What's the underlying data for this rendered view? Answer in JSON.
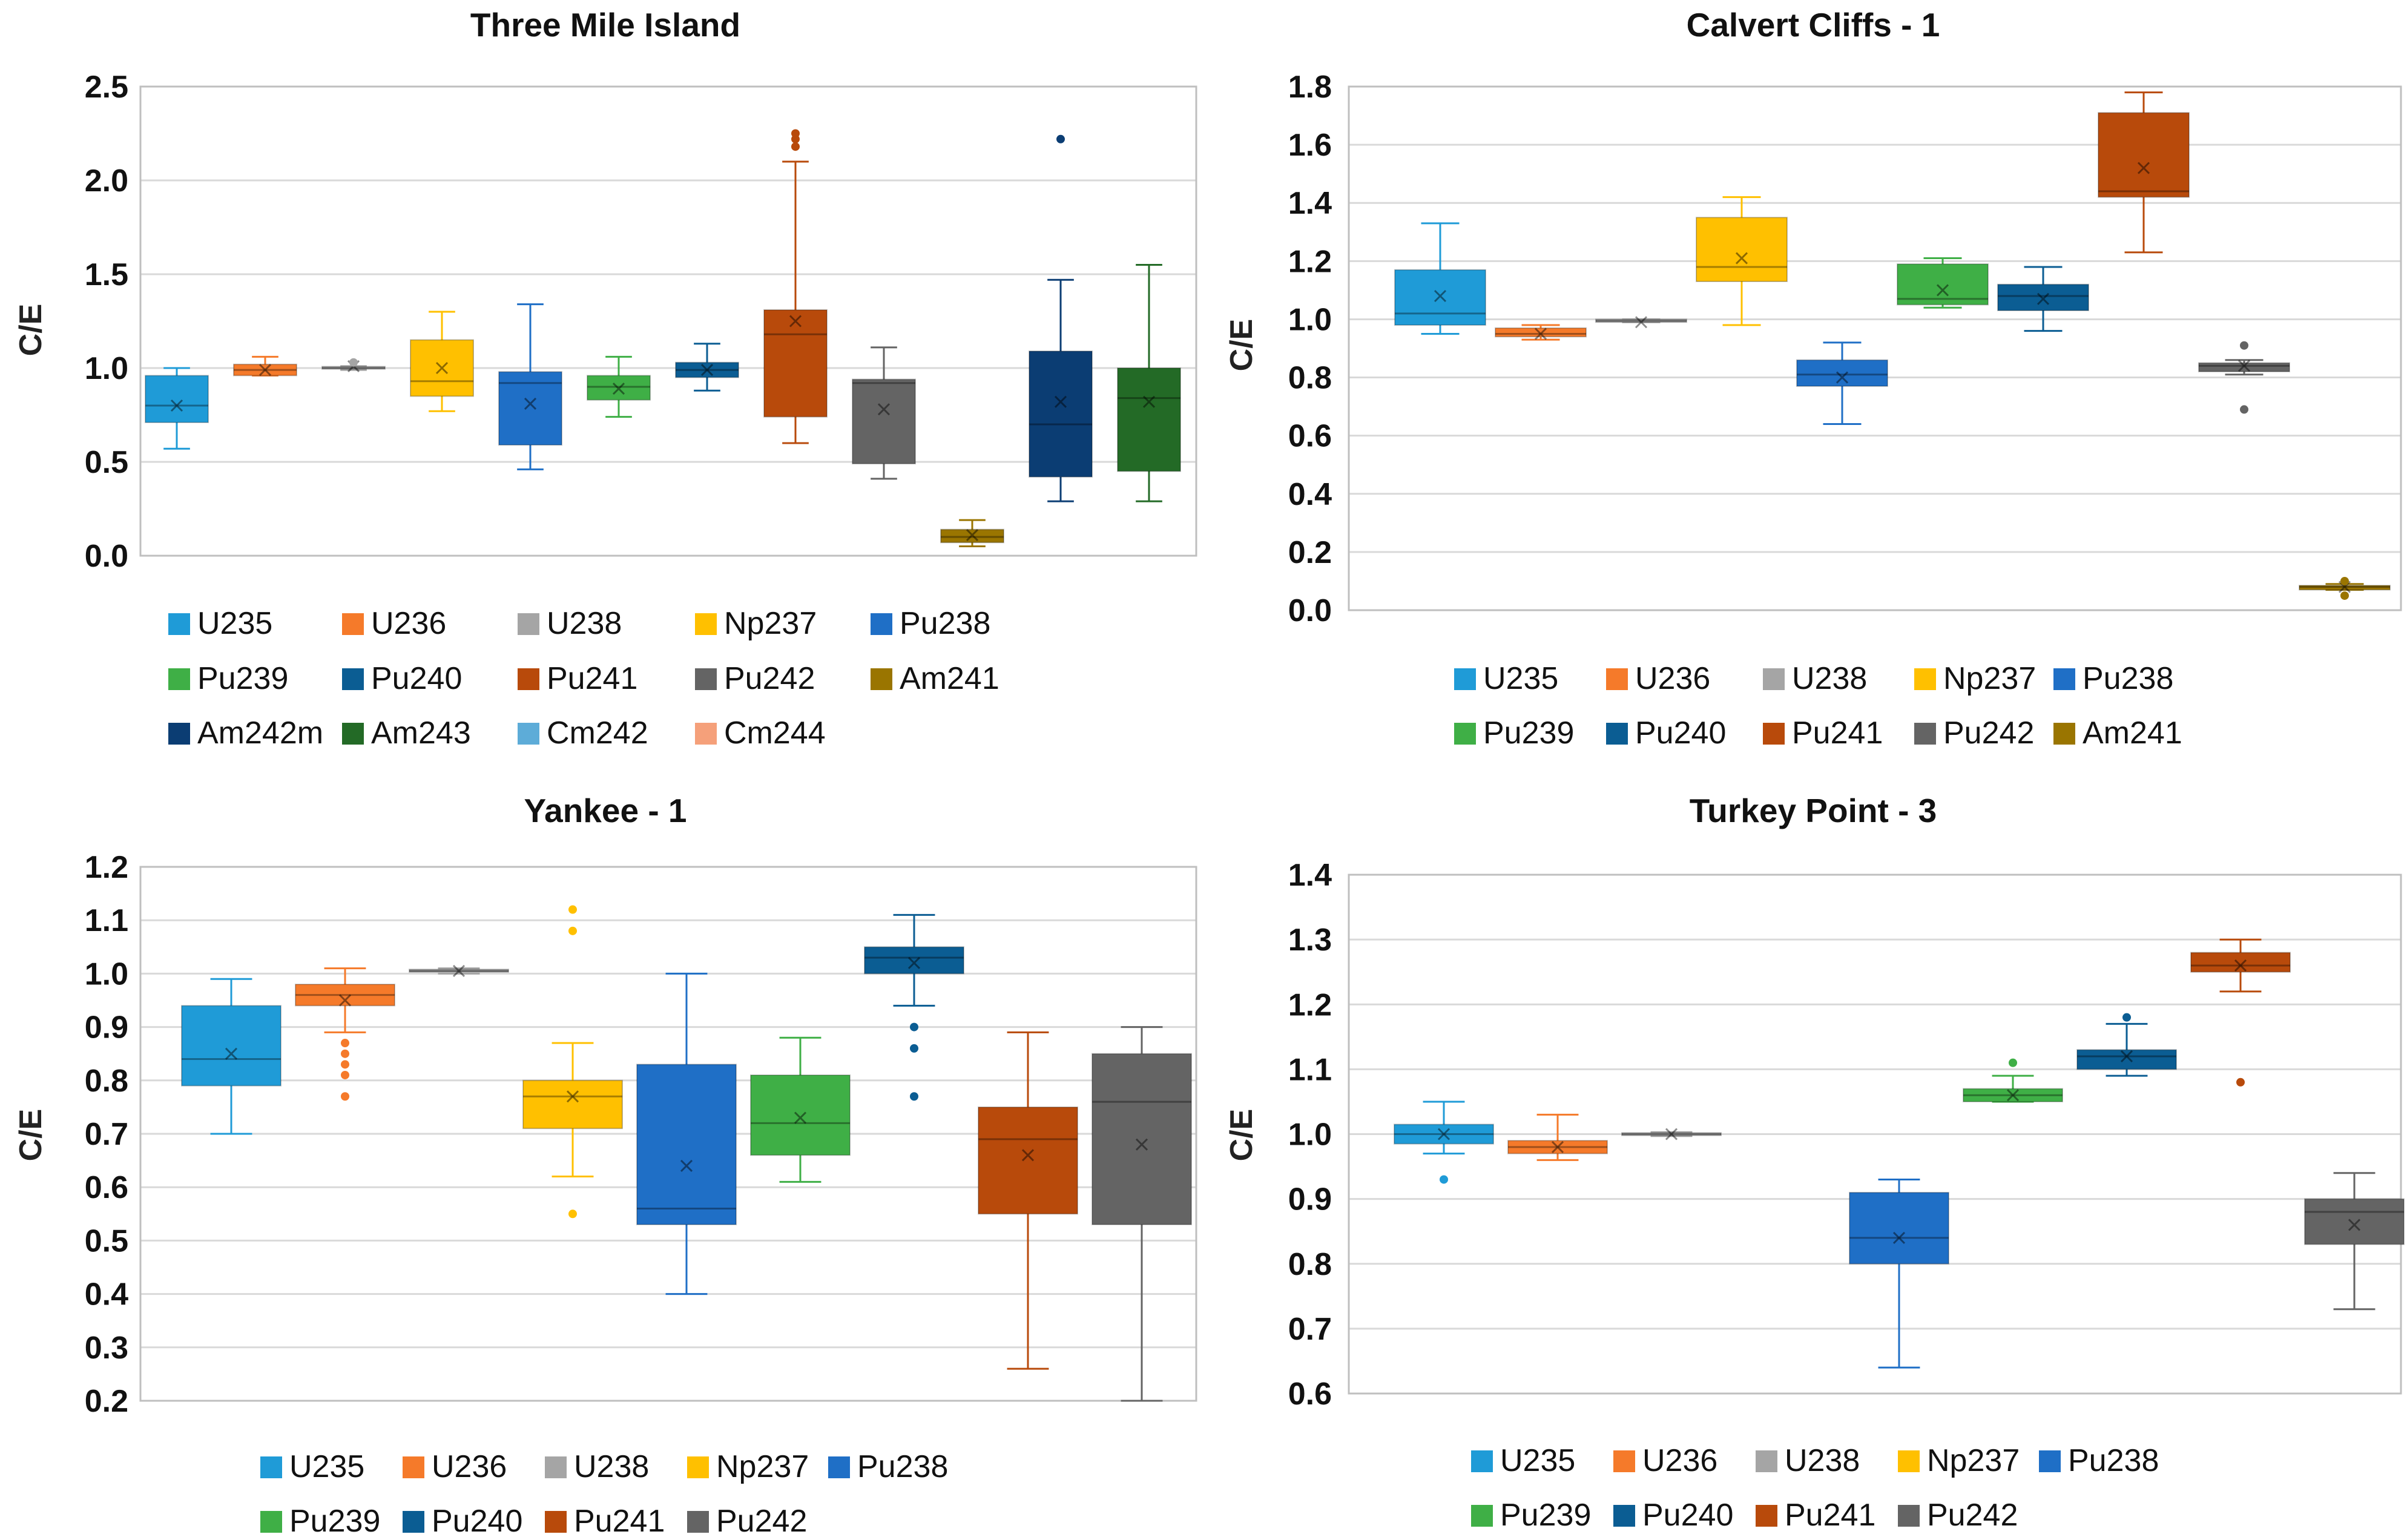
{
  "colors": {
    "U235": "#1F9BD7",
    "U236": "#F57A2A",
    "U238": "#A5A5A5",
    "Np237": "#FFC000",
    "Pu238": "#1F6FC6",
    "Pu239": "#3FAF46",
    "Pu240": "#0B5D93",
    "Pu241": "#B84A0B",
    "Pu242": "#646464",
    "Am241": "#9A7500",
    "Am242m": "#0B3D73",
    "Am243": "#236A26",
    "Cm242": "#5DACD8",
    "Cm244": "#F5A07A"
  },
  "chart_data": [
    {
      "type": "box",
      "title": "Three Mile Island",
      "ylabel": "C/E",
      "ylim": [
        0.0,
        2.5
      ],
      "yticks": [
        "0.0",
        "0.5",
        "1.0",
        "1.5",
        "2.0",
        "2.5"
      ],
      "legend": [
        "U235",
        "U236",
        "U238",
        "Np237",
        "Pu238",
        "Pu239",
        "Pu240",
        "Pu241",
        "Pu242",
        "Am241",
        "Am242m",
        "Am243",
        "Cm242",
        "Cm244"
      ],
      "series": [
        {
          "name": "U235",
          "slot": 0,
          "min": 0.57,
          "q1": 0.71,
          "median": 0.8,
          "q3": 0.96,
          "max": 1.0,
          "mean": 0.8,
          "outliers": []
        },
        {
          "name": "U236",
          "slot": 1,
          "min": 0.96,
          "q1": 0.96,
          "median": 0.99,
          "q3": 1.02,
          "max": 1.06,
          "mean": 0.99,
          "outliers": []
        },
        {
          "name": "U238",
          "slot": 2,
          "min": 0.99,
          "q1": 0.995,
          "median": 1.0,
          "q3": 1.005,
          "max": 1.01,
          "mean": 1.01,
          "outliers": [
            1.03
          ]
        },
        {
          "name": "Np237",
          "slot": 3,
          "min": 0.77,
          "q1": 0.85,
          "median": 0.93,
          "q3": 1.15,
          "max": 1.3,
          "mean": 1.0,
          "outliers": []
        },
        {
          "name": "Pu238",
          "slot": 4,
          "min": 0.46,
          "q1": 0.59,
          "median": 0.92,
          "q3": 0.98,
          "max": 1.34,
          "mean": 0.81,
          "outliers": []
        },
        {
          "name": "Pu239",
          "slot": 5,
          "min": 0.74,
          "q1": 0.83,
          "median": 0.9,
          "q3": 0.96,
          "max": 1.06,
          "mean": 0.89,
          "outliers": []
        },
        {
          "name": "Pu240",
          "slot": 6,
          "min": 0.88,
          "q1": 0.95,
          "median": 0.99,
          "q3": 1.03,
          "max": 1.13,
          "mean": 0.99,
          "outliers": []
        },
        {
          "name": "Pu241",
          "slot": 7,
          "min": 0.6,
          "q1": 0.74,
          "median": 1.18,
          "q3": 1.31,
          "max": 2.1,
          "mean": 1.25,
          "outliers": [
            2.18,
            2.22,
            2.25
          ]
        },
        {
          "name": "Pu242",
          "slot": 8,
          "min": 0.41,
          "q1": 0.49,
          "median": 0.92,
          "q3": 0.94,
          "max": 1.11,
          "mean": 0.78,
          "outliers": []
        },
        {
          "name": "Am241",
          "slot": 9,
          "min": 0.05,
          "q1": 0.07,
          "median": 0.1,
          "q3": 0.14,
          "max": 0.19,
          "mean": 0.11,
          "outliers": []
        },
        {
          "name": "Am242m",
          "slot": 10,
          "min": 0.29,
          "q1": 0.42,
          "median": 0.7,
          "q3": 1.09,
          "max": 1.47,
          "mean": 0.82,
          "outliers": [
            2.22
          ]
        },
        {
          "name": "Am243",
          "slot": 11,
          "min": 0.29,
          "q1": 0.45,
          "median": 0.84,
          "q3": 1.0,
          "max": 1.55,
          "mean": 0.82,
          "outliers": []
        }
      ]
    },
    {
      "type": "box",
      "title": "Calvert Cliffs - 1",
      "ylabel": "C/E",
      "ylim": [
        0.0,
        1.8
      ],
      "yticks": [
        "0.0",
        "0.2",
        "0.4",
        "0.6",
        "0.8",
        "1.0",
        "1.2",
        "1.4",
        "1.6",
        "1.8"
      ],
      "legend": [
        "U235",
        "U236",
        "U238",
        "Np237",
        "Pu238",
        "Pu239",
        "Pu240",
        "Pu241",
        "Pu242",
        "Am241"
      ],
      "series": [
        {
          "name": "U235",
          "slot": 0,
          "min": 0.95,
          "q1": 0.98,
          "median": 1.02,
          "q3": 1.17,
          "max": 1.33,
          "mean": 1.08,
          "outliers": []
        },
        {
          "name": "U236",
          "slot": 1,
          "min": 0.93,
          "q1": 0.94,
          "median": 0.95,
          "q3": 0.97,
          "max": 0.98,
          "mean": 0.95,
          "outliers": []
        },
        {
          "name": "U238",
          "slot": 2,
          "min": 0.99,
          "q1": 0.99,
          "median": 0.995,
          "q3": 1.0,
          "max": 1.0,
          "mean": 0.99,
          "outliers": []
        },
        {
          "name": "Np237",
          "slot": 3,
          "min": 0.98,
          "q1": 1.13,
          "median": 1.18,
          "q3": 1.35,
          "max": 1.42,
          "mean": 1.21,
          "outliers": []
        },
        {
          "name": "Pu238",
          "slot": 4,
          "min": 0.64,
          "q1": 0.77,
          "median": 0.81,
          "q3": 0.86,
          "max": 0.92,
          "mean": 0.8,
          "outliers": []
        },
        {
          "name": "Pu239",
          "slot": 5,
          "min": 1.04,
          "q1": 1.05,
          "median": 1.07,
          "q3": 1.19,
          "max": 1.21,
          "mean": 1.1,
          "outliers": []
        },
        {
          "name": "Pu240",
          "slot": 6,
          "min": 0.96,
          "q1": 1.03,
          "median": 1.08,
          "q3": 1.12,
          "max": 1.18,
          "mean": 1.07,
          "outliers": []
        },
        {
          "name": "Pu241",
          "slot": 7,
          "min": 1.23,
          "q1": 1.42,
          "median": 1.44,
          "q3": 1.71,
          "max": 1.78,
          "mean": 1.52,
          "outliers": []
        },
        {
          "name": "Pu242",
          "slot": 8,
          "min": 0.81,
          "q1": 0.82,
          "median": 0.84,
          "q3": 0.85,
          "max": 0.86,
          "mean": 0.84,
          "outliers": [
            0.91,
            0.69
          ]
        },
        {
          "name": "Am241",
          "slot": 9,
          "min": 0.07,
          "q1": 0.07,
          "median": 0.08,
          "q3": 0.085,
          "max": 0.09,
          "mean": 0.08,
          "outliers": [
            0.05,
            0.1
          ]
        }
      ]
    },
    {
      "type": "box",
      "title": "Yankee - 1",
      "ylabel": "C/E",
      "ylim": [
        0.2,
        1.2
      ],
      "yticks": [
        "0.2",
        "0.3",
        "0.4",
        "0.5",
        "0.6",
        "0.7",
        "0.8",
        "0.9",
        "1.0",
        "1.1",
        "1.2"
      ],
      "legend": [
        "U235",
        "U236",
        "U238",
        "Np237",
        "Pu238",
        "Pu239",
        "Pu240",
        "Pu241",
        "Pu242"
      ],
      "series": [
        {
          "name": "U235",
          "slot": 0,
          "min": 0.7,
          "q1": 0.79,
          "median": 0.84,
          "q3": 0.94,
          "max": 0.99,
          "mean": 0.85,
          "outliers": []
        },
        {
          "name": "U236",
          "slot": 1,
          "min": 0.89,
          "q1": 0.94,
          "median": 0.96,
          "q3": 0.98,
          "max": 1.01,
          "mean": 0.95,
          "outliers": [
            0.87,
            0.85,
            0.83,
            0.81,
            0.77
          ]
        },
        {
          "name": "U238",
          "slot": 2,
          "min": 1.0,
          "q1": 1.003,
          "median": 1.005,
          "q3": 1.008,
          "max": 1.01,
          "mean": 1.005,
          "outliers": []
        },
        {
          "name": "Np237",
          "slot": 3,
          "min": 0.62,
          "q1": 0.71,
          "median": 0.77,
          "q3": 0.8,
          "max": 0.87,
          "mean": 0.77,
          "outliers": [
            1.12,
            1.08,
            0.55
          ]
        },
        {
          "name": "Pu238",
          "slot": 4,
          "min": 0.4,
          "q1": 0.53,
          "median": 0.56,
          "q3": 0.83,
          "max": 1.0,
          "mean": 0.64,
          "outliers": []
        },
        {
          "name": "Pu239",
          "slot": 5,
          "min": 0.61,
          "q1": 0.66,
          "median": 0.72,
          "q3": 0.81,
          "max": 0.88,
          "mean": 0.73,
          "outliers": []
        },
        {
          "name": "Pu240",
          "slot": 6,
          "min": 0.94,
          "q1": 1.0,
          "median": 1.03,
          "q3": 1.05,
          "max": 1.11,
          "mean": 1.02,
          "outliers": [
            0.9,
            0.86,
            0.77
          ]
        },
        {
          "name": "Pu241",
          "slot": 7,
          "min": 0.26,
          "q1": 0.55,
          "median": 0.69,
          "q3": 0.75,
          "max": 0.89,
          "mean": 0.66,
          "outliers": []
        },
        {
          "name": "Pu242",
          "slot": 8,
          "min": 0.2,
          "q1": 0.53,
          "median": 0.76,
          "q3": 0.85,
          "max": 0.9,
          "mean": 0.68,
          "outliers": []
        }
      ]
    },
    {
      "type": "box",
      "title": "Turkey Point - 3",
      "ylabel": "C/E",
      "ylim": [
        0.6,
        1.4
      ],
      "yticks": [
        "0.6",
        "0.7",
        "0.8",
        "0.9",
        "1.0",
        "1.1",
        "1.2",
        "1.3",
        "1.4"
      ],
      "legend": [
        "U235",
        "U236",
        "U238",
        "Np237",
        "Pu238",
        "Pu239",
        "Pu240",
        "Pu241",
        "Pu242"
      ],
      "series": [
        {
          "name": "U235",
          "slot": 0,
          "min": 0.97,
          "q1": 0.985,
          "median": 1.0,
          "q3": 1.015,
          "max": 1.05,
          "mean": 1.0,
          "outliers": [
            0.93
          ]
        },
        {
          "name": "U236",
          "slot": 1,
          "min": 0.96,
          "q1": 0.97,
          "median": 0.98,
          "q3": 0.99,
          "max": 1.03,
          "mean": 0.98,
          "outliers": []
        },
        {
          "name": "U238",
          "slot": 2,
          "min": 0.997,
          "q1": 0.998,
          "median": 1.0,
          "q3": 1.002,
          "max": 1.003,
          "mean": 1.0,
          "outliers": []
        },
        {
          "name": "Pu238",
          "slot": 4,
          "min": 0.64,
          "q1": 0.8,
          "median": 0.84,
          "q3": 0.91,
          "max": 0.93,
          "mean": 0.84,
          "outliers": []
        },
        {
          "name": "Pu239",
          "slot": 5,
          "min": 1.05,
          "q1": 1.05,
          "median": 1.06,
          "q3": 1.07,
          "max": 1.09,
          "mean": 1.06,
          "outliers": [
            1.11
          ]
        },
        {
          "name": "Pu240",
          "slot": 6,
          "min": 1.09,
          "q1": 1.1,
          "median": 1.12,
          "q3": 1.13,
          "max": 1.17,
          "mean": 1.12,
          "outliers": [
            1.18
          ]
        },
        {
          "name": "Pu241",
          "slot": 7,
          "min": 1.22,
          "q1": 1.25,
          "median": 1.26,
          "q3": 1.28,
          "max": 1.3,
          "mean": 1.26,
          "outliers": [
            1.08
          ]
        },
        {
          "name": "Pu242",
          "slot": 8,
          "min": 0.73,
          "q1": 0.83,
          "median": 0.88,
          "q3": 0.9,
          "max": 0.94,
          "mean": 0.86,
          "outliers": []
        }
      ]
    }
  ]
}
